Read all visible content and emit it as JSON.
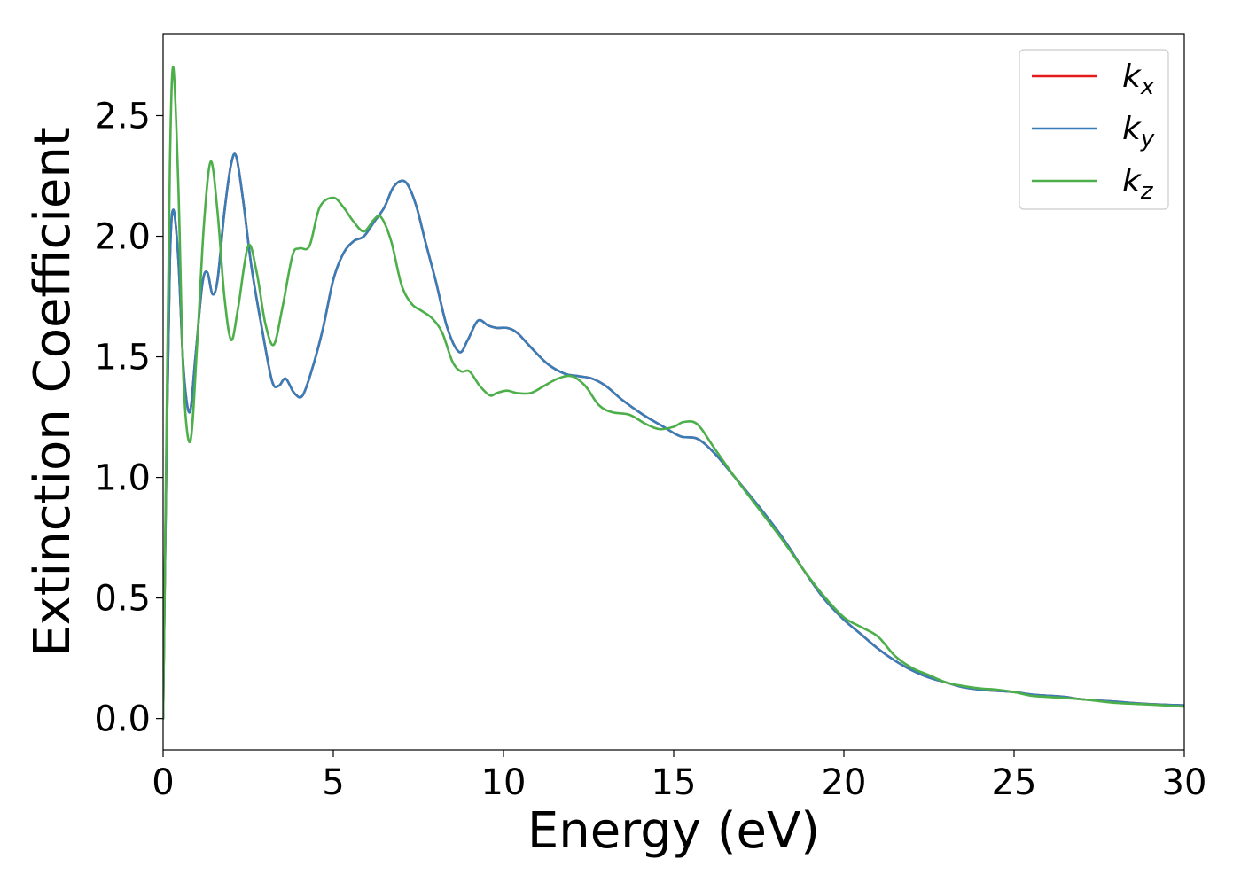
{
  "chart_data": {
    "type": "line",
    "title": "",
    "xlabel": "Energy (eV)",
    "ylabel": "Extinction Coefficient",
    "xlim": [
      0,
      30
    ],
    "ylim": [
      -0.13,
      2.84
    ],
    "xticks": [
      0,
      5,
      10,
      15,
      20,
      25,
      30
    ],
    "xtick_labels": [
      "0",
      "5",
      "10",
      "15",
      "20",
      "25",
      "30"
    ],
    "yticks": [
      0.0,
      0.5,
      1.0,
      1.5,
      2.0,
      2.5
    ],
    "ytick_labels": [
      "0.0",
      "0.5",
      "1.0",
      "1.5",
      "2.0",
      "2.5"
    ],
    "grid": false,
    "legend_position": "top-right",
    "series": [
      {
        "name": "k_x",
        "label_main": "k",
        "label_sub": "x",
        "color": "#e41a1c",
        "x": [
          0,
          0.1,
          0.2,
          0.3,
          0.45,
          0.6,
          0.78,
          0.95,
          1.15,
          1.3,
          1.45,
          1.6,
          1.8,
          2.0,
          2.15,
          2.35,
          2.6,
          2.9,
          3.2,
          3.4,
          3.6,
          3.85,
          4.1,
          4.4,
          4.7,
          5.0,
          5.3,
          5.6,
          5.9,
          6.2,
          6.5,
          6.75,
          7.0,
          7.2,
          7.45,
          7.7,
          8.0,
          8.35,
          8.7,
          8.95,
          9.25,
          9.55,
          9.8,
          10.1,
          10.4,
          10.8,
          11.3,
          11.8,
          12.2,
          12.6,
          13.0,
          13.5,
          14.1,
          14.7,
          15.2,
          15.7,
          16.2,
          16.8,
          17.5,
          18.2,
          18.8,
          19.4,
          20.0,
          20.5,
          21.0,
          21.5,
          22.0,
          22.5,
          23.0,
          23.5,
          24.0,
          24.5,
          25.0,
          25.5,
          26.0,
          26.5,
          27.0,
          28.0,
          29.0,
          30.0
        ],
        "y": [
          0,
          1.1,
          1.9,
          2.11,
          1.9,
          1.45,
          1.27,
          1.5,
          1.8,
          1.85,
          1.76,
          1.82,
          2.1,
          2.3,
          2.33,
          2.15,
          1.87,
          1.62,
          1.4,
          1.38,
          1.41,
          1.35,
          1.34,
          1.46,
          1.62,
          1.82,
          1.93,
          1.98,
          2.0,
          2.06,
          2.12,
          2.2,
          2.23,
          2.21,
          2.12,
          1.98,
          1.82,
          1.62,
          1.52,
          1.57,
          1.65,
          1.63,
          1.62,
          1.62,
          1.6,
          1.54,
          1.47,
          1.43,
          1.42,
          1.41,
          1.38,
          1.32,
          1.26,
          1.21,
          1.17,
          1.16,
          1.1,
          1.0,
          0.88,
          0.75,
          0.62,
          0.5,
          0.41,
          0.35,
          0.29,
          0.24,
          0.2,
          0.17,
          0.15,
          0.13,
          0.12,
          0.115,
          0.11,
          0.1,
          0.095,
          0.09,
          0.08,
          0.07,
          0.06,
          0.055
        ]
      },
      {
        "name": "k_y",
        "label_main": "k",
        "label_sub": "y",
        "color": "#377eb8",
        "x": [
          0,
          0.1,
          0.2,
          0.3,
          0.45,
          0.6,
          0.78,
          0.95,
          1.15,
          1.3,
          1.45,
          1.6,
          1.8,
          2.0,
          2.15,
          2.35,
          2.6,
          2.9,
          3.2,
          3.4,
          3.6,
          3.85,
          4.1,
          4.4,
          4.7,
          5.0,
          5.3,
          5.6,
          5.9,
          6.2,
          6.5,
          6.75,
          7.0,
          7.2,
          7.45,
          7.7,
          8.0,
          8.35,
          8.7,
          8.95,
          9.25,
          9.55,
          9.8,
          10.1,
          10.4,
          10.8,
          11.3,
          11.8,
          12.2,
          12.6,
          13.0,
          13.5,
          14.1,
          14.7,
          15.2,
          15.7,
          16.2,
          16.8,
          17.5,
          18.2,
          18.8,
          19.4,
          20.0,
          20.5,
          21.0,
          21.5,
          22.0,
          22.5,
          23.0,
          23.5,
          24.0,
          24.5,
          25.0,
          25.5,
          26.0,
          26.5,
          27.0,
          28.0,
          29.0,
          30.0
        ],
        "y": [
          0,
          1.1,
          1.9,
          2.11,
          1.9,
          1.45,
          1.27,
          1.5,
          1.8,
          1.85,
          1.76,
          1.82,
          2.1,
          2.3,
          2.33,
          2.15,
          1.87,
          1.62,
          1.4,
          1.38,
          1.41,
          1.35,
          1.34,
          1.46,
          1.62,
          1.82,
          1.93,
          1.98,
          2.0,
          2.06,
          2.12,
          2.2,
          2.23,
          2.21,
          2.12,
          1.98,
          1.82,
          1.62,
          1.52,
          1.57,
          1.65,
          1.63,
          1.62,
          1.62,
          1.6,
          1.54,
          1.47,
          1.43,
          1.42,
          1.41,
          1.38,
          1.32,
          1.26,
          1.21,
          1.17,
          1.16,
          1.1,
          1.0,
          0.88,
          0.75,
          0.62,
          0.5,
          0.41,
          0.35,
          0.29,
          0.24,
          0.2,
          0.17,
          0.15,
          0.13,
          0.12,
          0.115,
          0.11,
          0.1,
          0.095,
          0.09,
          0.08,
          0.07,
          0.06,
          0.055
        ]
      },
      {
        "name": "k_z",
        "label_main": "k",
        "label_sub": "z",
        "color": "#4daf4a",
        "x": [
          0,
          0.1,
          0.2,
          0.3,
          0.45,
          0.6,
          0.8,
          1.0,
          1.2,
          1.4,
          1.6,
          1.8,
          2.0,
          2.2,
          2.5,
          2.75,
          3.0,
          3.25,
          3.5,
          3.8,
          4.0,
          4.3,
          4.6,
          5.0,
          5.3,
          5.6,
          5.9,
          6.2,
          6.4,
          6.7,
          7.0,
          7.3,
          7.6,
          7.9,
          8.2,
          8.5,
          8.75,
          9.0,
          9.3,
          9.6,
          9.8,
          10.1,
          10.4,
          10.8,
          11.2,
          11.6,
          12.0,
          12.4,
          12.8,
          13.2,
          13.7,
          14.2,
          14.6,
          15.0,
          15.3,
          15.7,
          16.2,
          16.8,
          17.5,
          18.2,
          18.8,
          19.4,
          20.0,
          20.5,
          21.0,
          21.5,
          22.0,
          22.5,
          23.0,
          23.5,
          24.0,
          24.5,
          25.0,
          25.5,
          26.0,
          27.0,
          28.0,
          29.0,
          30.0
        ],
        "y": [
          0,
          1.2,
          2.3,
          2.7,
          2.2,
          1.4,
          1.15,
          1.55,
          2.05,
          2.31,
          2.1,
          1.75,
          1.57,
          1.7,
          1.96,
          1.85,
          1.64,
          1.55,
          1.7,
          1.92,
          1.95,
          1.96,
          2.12,
          2.16,
          2.12,
          2.06,
          2.02,
          2.07,
          2.08,
          1.98,
          1.8,
          1.72,
          1.69,
          1.66,
          1.6,
          1.48,
          1.44,
          1.44,
          1.38,
          1.34,
          1.35,
          1.36,
          1.35,
          1.35,
          1.38,
          1.41,
          1.42,
          1.38,
          1.3,
          1.27,
          1.26,
          1.22,
          1.2,
          1.21,
          1.23,
          1.22,
          1.12,
          1.0,
          0.87,
          0.74,
          0.62,
          0.51,
          0.42,
          0.38,
          0.34,
          0.26,
          0.21,
          0.18,
          0.15,
          0.135,
          0.125,
          0.12,
          0.11,
          0.095,
          0.09,
          0.08,
          0.065,
          0.058,
          0.05
        ]
      }
    ]
  }
}
